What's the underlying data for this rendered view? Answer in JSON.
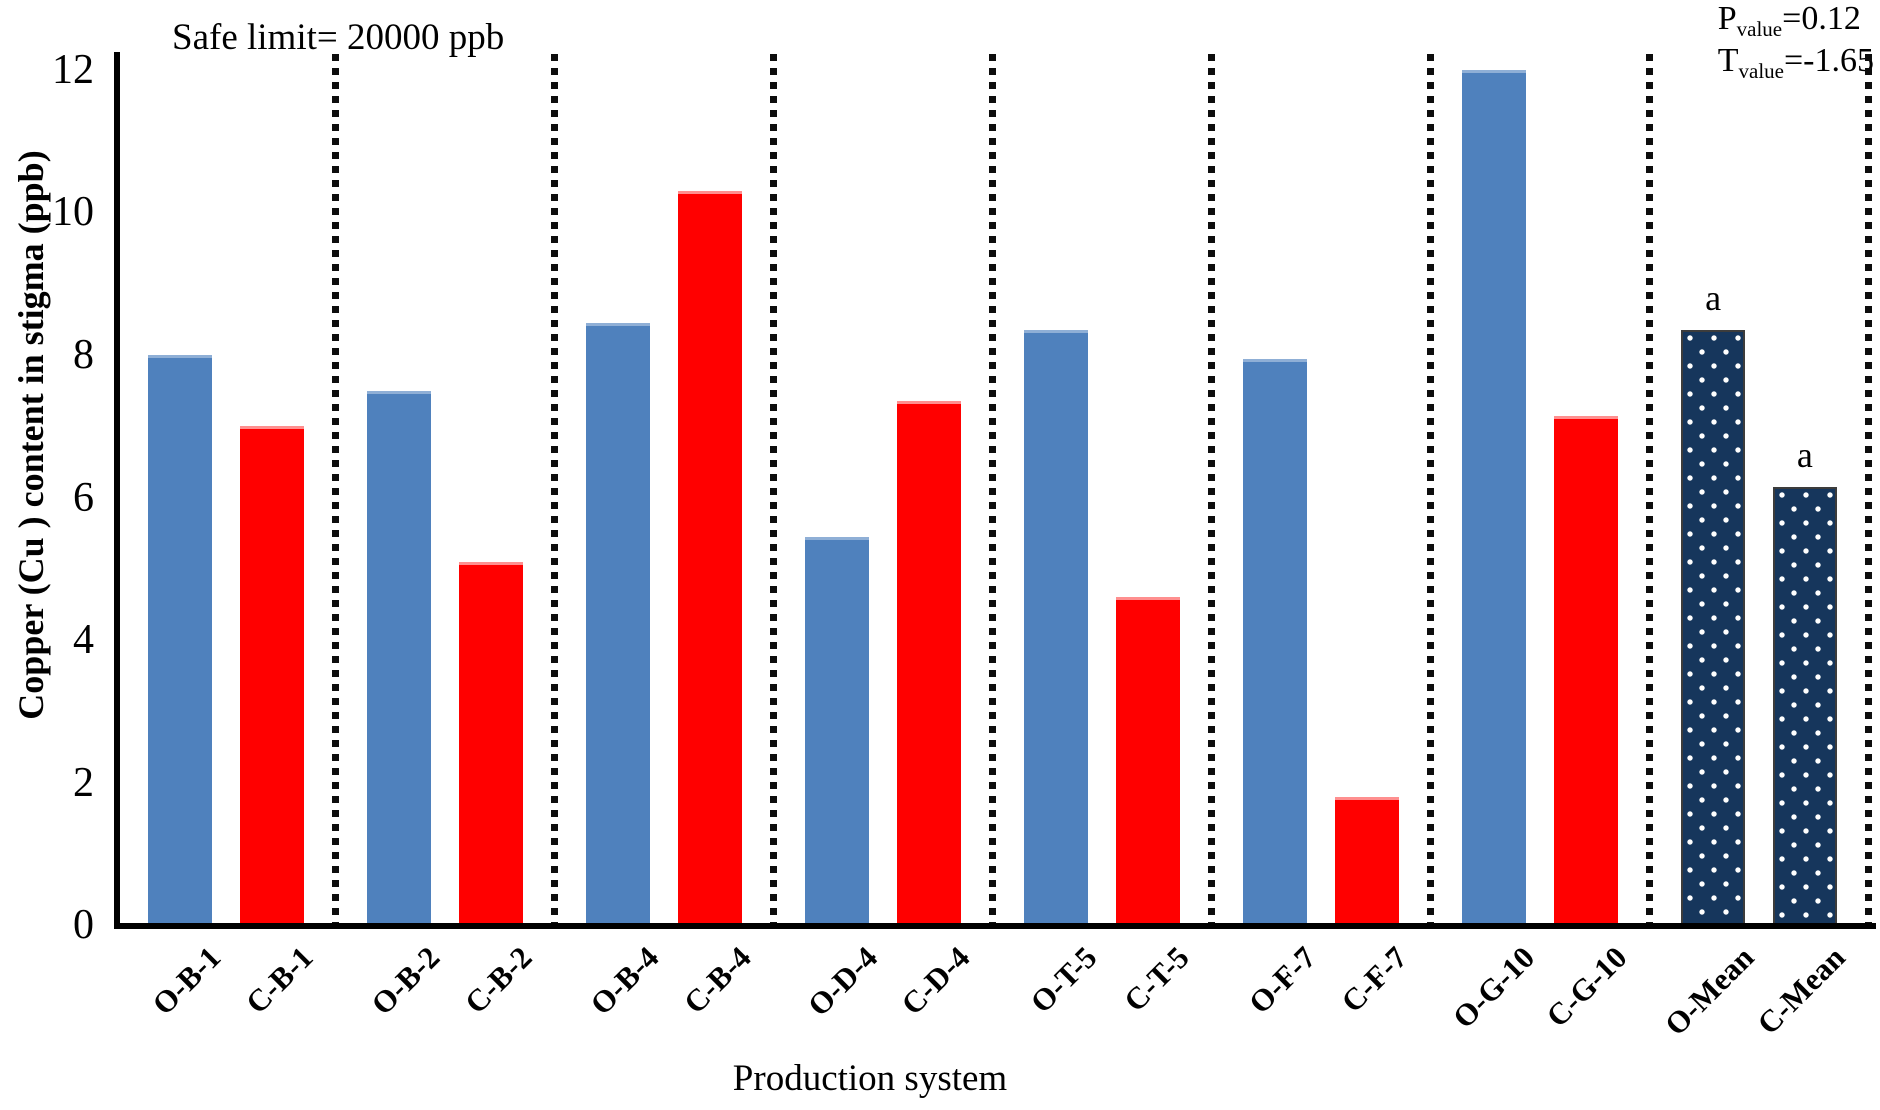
{
  "annotations": {
    "safe_limit": "Safe limit= 20000 ppb",
    "stats": [
      {
        "letter": "P",
        "subscript": "value",
        "rest": "=0.12"
      },
      {
        "letter": "T",
        "subscript": "value",
        "rest": "=-1.65"
      }
    ]
  },
  "chart_data": {
    "type": "bar",
    "title": "Safe limit= 20000 ppb",
    "xlabel": "Production system",
    "ylabel": "Copper (Cu ) content in stigma (ppb)",
    "ylim": [
      0,
      12
    ],
    "yticks": [
      0,
      2,
      4,
      6,
      8,
      10,
      12
    ],
    "grid": false,
    "legend": "none",
    "layout": "bars in pairs (organic vs conventional) divided by vertical dotted separator lines; dotted separator also closes the right edge",
    "categories": [
      "O-B-1",
      "C-B-1",
      "O-B-2",
      "C-B-2",
      "O-B-4",
      "C-B-4",
      "O-D-4",
      "C-D-4",
      "O-T-5",
      "C-T-5",
      "O-F-7",
      "C-F-7",
      "O-G-10",
      "C-G-10",
      "O-Mean",
      "C-Mean"
    ],
    "values": [
      8.0,
      7.0,
      7.5,
      5.1,
      8.45,
      10.3,
      5.45,
      7.35,
      8.35,
      4.6,
      7.95,
      1.8,
      12.0,
      7.15,
      8.35,
      6.15
    ],
    "styles": [
      "organic",
      "conventional",
      "organic",
      "conventional",
      "organic",
      "conventional",
      "organic",
      "conventional",
      "organic",
      "conventional",
      "organic",
      "conventional",
      "organic",
      "conventional",
      "mean",
      "mean"
    ],
    "letters": [
      "",
      "",
      "",
      "",
      "",
      "",
      "",
      "",
      "",
      "",
      "",
      "",
      "",
      "",
      "a",
      "a"
    ]
  },
  "colors": {
    "organic": "#4F81BD",
    "conventional": "#FF0000",
    "mean": "#16365C",
    "mean_dot": "#FFFFFF",
    "axis": "#000000"
  }
}
